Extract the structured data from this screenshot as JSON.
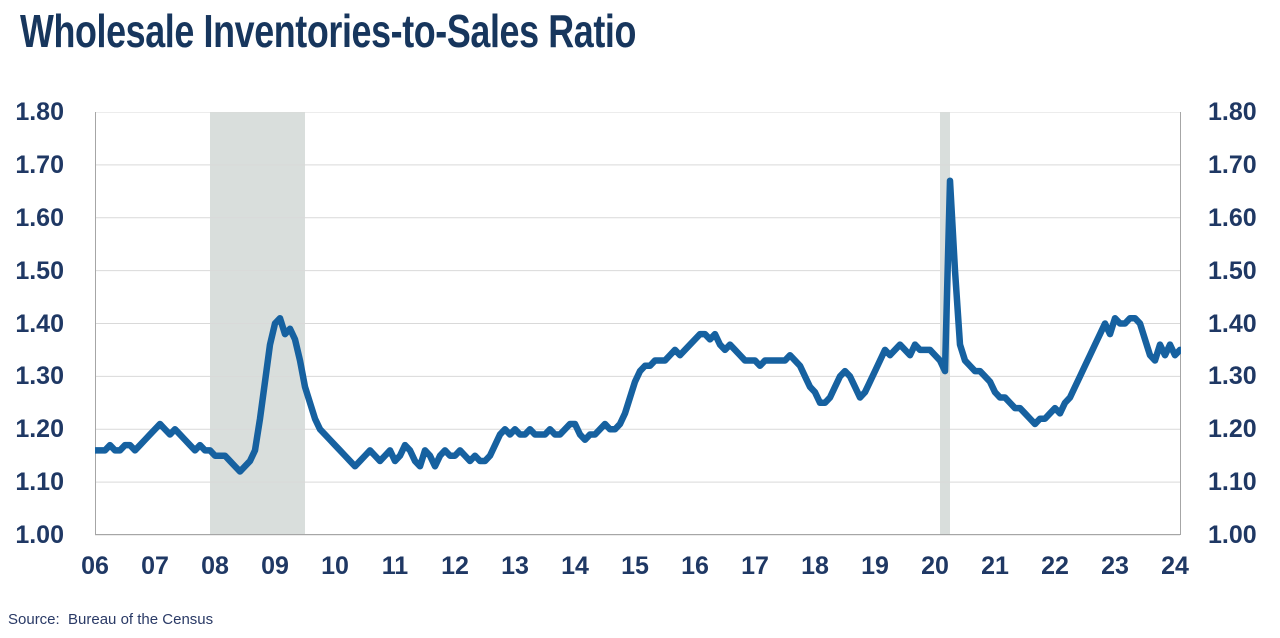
{
  "title": "Wholesale Inventories-to-Sales Ratio",
  "source": "Source:  Bureau of the Census",
  "colors": {
    "title_text": "#17365d",
    "axis_text": "#1f3864",
    "line": "#1661a0",
    "recession_band": "#d9dedc",
    "gridline": "#d9d9d9",
    "plot_border": "#a6a6a6"
  },
  "chart_data": {
    "type": "line",
    "title": "Wholesale Inventories-to-Sales Ratio",
    "frequency": "monthly",
    "x_start": "2006-01",
    "x_end": "2024-02",
    "ylim": [
      1.0,
      1.8
    ],
    "grid": true,
    "legend": false,
    "yticks": [
      "1.80",
      "1.70",
      "1.60",
      "1.50",
      "1.40",
      "1.30",
      "1.20",
      "1.10",
      "1.00"
    ],
    "xticks": [
      "06",
      "07",
      "08",
      "09",
      "10",
      "11",
      "12",
      "13",
      "14",
      "15",
      "16",
      "17",
      "18",
      "19",
      "20",
      "21",
      "22",
      "23",
      "24"
    ],
    "recession_bands": [
      {
        "start": "2007-12",
        "end": "2009-07"
      },
      {
        "start": "2020-02",
        "end": "2020-04"
      }
    ],
    "values": [
      1.16,
      1.16,
      1.16,
      1.17,
      1.16,
      1.16,
      1.17,
      1.17,
      1.16,
      1.17,
      1.18,
      1.19,
      1.2,
      1.21,
      1.2,
      1.19,
      1.2,
      1.19,
      1.18,
      1.17,
      1.16,
      1.17,
      1.16,
      1.16,
      1.15,
      1.15,
      1.15,
      1.14,
      1.13,
      1.12,
      1.13,
      1.14,
      1.16,
      1.22,
      1.29,
      1.36,
      1.4,
      1.41,
      1.38,
      1.39,
      1.37,
      1.33,
      1.28,
      1.25,
      1.22,
      1.2,
      1.19,
      1.18,
      1.17,
      1.16,
      1.15,
      1.14,
      1.13,
      1.14,
      1.15,
      1.16,
      1.15,
      1.14,
      1.15,
      1.16,
      1.14,
      1.15,
      1.17,
      1.16,
      1.14,
      1.13,
      1.16,
      1.15,
      1.13,
      1.15,
      1.16,
      1.15,
      1.15,
      1.16,
      1.15,
      1.14,
      1.15,
      1.14,
      1.14,
      1.15,
      1.17,
      1.19,
      1.2,
      1.19,
      1.2,
      1.19,
      1.19,
      1.2,
      1.19,
      1.19,
      1.19,
      1.2,
      1.19,
      1.19,
      1.2,
      1.21,
      1.21,
      1.19,
      1.18,
      1.19,
      1.19,
      1.2,
      1.21,
      1.2,
      1.2,
      1.21,
      1.23,
      1.26,
      1.29,
      1.31,
      1.32,
      1.32,
      1.33,
      1.33,
      1.33,
      1.34,
      1.35,
      1.34,
      1.35,
      1.36,
      1.37,
      1.38,
      1.38,
      1.37,
      1.38,
      1.36,
      1.35,
      1.36,
      1.35,
      1.34,
      1.33,
      1.33,
      1.33,
      1.32,
      1.33,
      1.33,
      1.33,
      1.33,
      1.33,
      1.34,
      1.33,
      1.32,
      1.3,
      1.28,
      1.27,
      1.25,
      1.25,
      1.26,
      1.28,
      1.3,
      1.31,
      1.3,
      1.28,
      1.26,
      1.27,
      1.29,
      1.31,
      1.33,
      1.35,
      1.34,
      1.35,
      1.36,
      1.35,
      1.34,
      1.36,
      1.35,
      1.35,
      1.35,
      1.34,
      1.33,
      1.31,
      1.67,
      1.5,
      1.36,
      1.33,
      1.32,
      1.31,
      1.31,
      1.3,
      1.29,
      1.27,
      1.26,
      1.26,
      1.25,
      1.24,
      1.24,
      1.23,
      1.22,
      1.21,
      1.22,
      1.22,
      1.23,
      1.24,
      1.23,
      1.25,
      1.26,
      1.28,
      1.3,
      1.32,
      1.34,
      1.36,
      1.38,
      1.4,
      1.38,
      1.41,
      1.4,
      1.4,
      1.41,
      1.41,
      1.4,
      1.37,
      1.34,
      1.33,
      1.36,
      1.34,
      1.36,
      1.34,
      1.35
    ]
  }
}
